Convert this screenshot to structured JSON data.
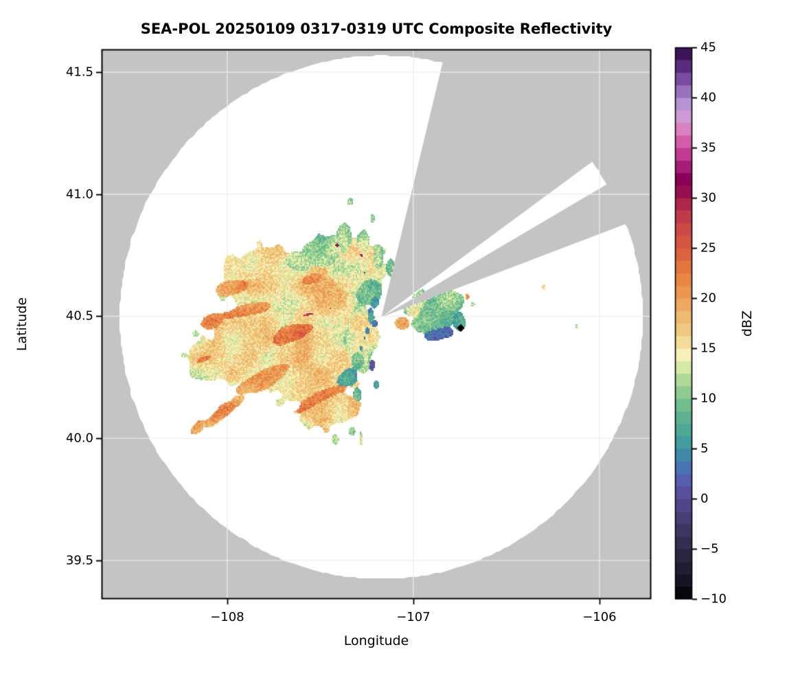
{
  "title": "SEA-POL 20250109 0317-0319 UTC Composite Reflectivity",
  "axes": {
    "xlabel": "Longitude",
    "ylabel": "Latitude",
    "xlim": [
      -108.675,
      -105.723
    ],
    "ylim": [
      39.342,
      41.593
    ],
    "x_ticks": [
      {
        "value": -108,
        "label": "−108"
      },
      {
        "value": -107,
        "label": "−107"
      },
      {
        "value": -106,
        "label": "−106"
      }
    ],
    "y_ticks": [
      {
        "value": 41.5,
        "label": "41.5"
      },
      {
        "value": 41.0,
        "label": "41.0"
      },
      {
        "value": 40.5,
        "label": "40.5"
      },
      {
        "value": 40.0,
        "label": "40.0"
      },
      {
        "value": 39.5,
        "label": "39.5"
      }
    ]
  },
  "colors": {
    "plot_background": "#c4c4c4",
    "coverage_fill": "#ffffff",
    "grid": "#ececec",
    "frame": "#000000",
    "marker": "#000000"
  },
  "radar": {
    "center_lon": -107.172,
    "center_lat": 40.496,
    "range_radius_deg_lat": 1.072,
    "blocked_sectors_az": [
      [
        13.5,
        53.5
      ],
      [
        59.5,
        69.0
      ]
    ]
  },
  "marker": {
    "lon": -106.745,
    "lat": 40.452,
    "shape": "diamond",
    "color": "#000000"
  },
  "colorbar": {
    "label": "dBZ",
    "min": -10,
    "max": 45,
    "band_step": 1.25,
    "ticks": [
      {
        "value": 45,
        "label": "45"
      },
      {
        "value": 40,
        "label": "40"
      },
      {
        "value": 35,
        "label": "35"
      },
      {
        "value": 30,
        "label": "30"
      },
      {
        "value": 25,
        "label": "25"
      },
      {
        "value": 20,
        "label": "20"
      },
      {
        "value": 15,
        "label": "15"
      },
      {
        "value": 10,
        "label": "10"
      },
      {
        "value": 5,
        "label": "5"
      },
      {
        "value": 0,
        "label": "0"
      },
      {
        "value": -5,
        "label": "−5"
      },
      {
        "value": -10,
        "label": "−10"
      }
    ],
    "stops": [
      [
        -10,
        "#000000"
      ],
      [
        -8.5,
        "#131020"
      ],
      [
        -7,
        "#201c31"
      ],
      [
        -5.5,
        "#2c2643"
      ],
      [
        -4,
        "#373054"
      ],
      [
        -2.5,
        "#43396b"
      ],
      [
        -1.2,
        "#4d4180"
      ],
      [
        0,
        "#564a92"
      ],
      [
        1,
        "#5b54a4"
      ],
      [
        2.2,
        "#5462b1"
      ],
      [
        3.2,
        "#4875b4"
      ],
      [
        4.2,
        "#4186ab"
      ],
      [
        5,
        "#3f95a3"
      ],
      [
        6,
        "#44a19b"
      ],
      [
        7.5,
        "#55ad92"
      ],
      [
        9,
        "#6cba8f"
      ],
      [
        10,
        "#7fc48f"
      ],
      [
        11.2,
        "#9cd193"
      ],
      [
        12.5,
        "#c0e09a"
      ],
      [
        13.5,
        "#e3eeab"
      ],
      [
        14.2,
        "#f7f3bd"
      ],
      [
        15,
        "#f5e6a5"
      ],
      [
        16.2,
        "#f2d28b"
      ],
      [
        17.5,
        "#efc176"
      ],
      [
        19,
        "#edaf64"
      ],
      [
        20,
        "#eca05a"
      ],
      [
        21.2,
        "#ea8f4b"
      ],
      [
        22.5,
        "#e77e3e"
      ],
      [
        24,
        "#df683c"
      ],
      [
        25,
        "#d95a3e"
      ],
      [
        26.2,
        "#d25042"
      ],
      [
        27.5,
        "#c84347"
      ],
      [
        28.8,
        "#b93149"
      ],
      [
        30,
        "#a21b4b"
      ],
      [
        31,
        "#8f0853"
      ],
      [
        31.9,
        "#8d0057"
      ],
      [
        32.8,
        "#9d1570"
      ],
      [
        33.8,
        "#b52d87"
      ],
      [
        34.8,
        "#c9459a"
      ],
      [
        35.8,
        "#d562ae"
      ],
      [
        36.8,
        "#da7fc1"
      ],
      [
        37.8,
        "#d495d2"
      ],
      [
        38.8,
        "#c5a0da"
      ],
      [
        39.8,
        "#ab89cc"
      ],
      [
        41,
        "#8d67b3"
      ],
      [
        42.2,
        "#70439a"
      ],
      [
        43.5,
        "#4f2372"
      ],
      [
        44.5,
        "#3a1256"
      ],
      [
        45,
        "#2d0a45"
      ]
    ]
  },
  "chart_data": {
    "type": "heatmap",
    "note": "Radar composite reflectivity field; echo_regions are elliptical gaussian patches [lon, lat, rx_deg, ry_deg, rot_deg, dbz] rendered as a speckled field, clipped to the scan circle minus blocked sectors.",
    "title": "SEA-POL 20250109 0317-0319 UTC Composite Reflectivity",
    "xlabel": "Longitude",
    "ylabel": "Latitude",
    "value_units": "dBZ",
    "value_range": [
      -10,
      45
    ],
    "echo_regions": [
      [
        -107.72,
        40.6,
        0.34,
        0.2,
        -15,
        16
      ],
      [
        -107.5,
        40.52,
        0.3,
        0.24,
        0,
        17
      ],
      [
        -107.55,
        40.3,
        0.33,
        0.2,
        10,
        17
      ],
      [
        -107.88,
        40.42,
        0.28,
        0.2,
        20,
        16
      ],
      [
        -107.32,
        40.68,
        0.2,
        0.15,
        0,
        15
      ],
      [
        -107.45,
        40.13,
        0.17,
        0.11,
        10,
        17
      ],
      [
        -108.07,
        40.33,
        0.16,
        0.1,
        15,
        16
      ],
      [
        -107.3,
        40.42,
        0.12,
        0.2,
        0,
        14
      ],
      [
        -107.48,
        40.76,
        0.14,
        0.08,
        0,
        12
      ],
      [
        -107.62,
        40.72,
        0.1,
        0.06,
        0,
        13
      ],
      [
        -107.25,
        40.61,
        0.1,
        0.09,
        0,
        11
      ],
      [
        -107.37,
        40.81,
        0.045,
        0.09,
        0,
        11
      ],
      [
        -107.27,
        40.79,
        0.04,
        0.08,
        0,
        12
      ],
      [
        -107.19,
        40.74,
        0.035,
        0.07,
        0,
        11
      ],
      [
        -107.12,
        40.7,
        0.03,
        0.05,
        0,
        10
      ],
      [
        -107.3,
        40.33,
        0.06,
        0.07,
        0,
        9
      ],
      [
        -107.36,
        40.25,
        0.09,
        0.05,
        20,
        8
      ],
      [
        -107.85,
        40.53,
        0.26,
        0.05,
        12,
        22
      ],
      [
        -107.62,
        40.44,
        0.28,
        0.06,
        15,
        23
      ],
      [
        -107.75,
        40.26,
        0.26,
        0.055,
        22,
        22
      ],
      [
        -107.48,
        40.17,
        0.18,
        0.05,
        18,
        22
      ],
      [
        -107.95,
        40.62,
        0.13,
        0.04,
        8,
        21
      ],
      [
        -108.1,
        40.33,
        0.11,
        0.035,
        15,
        21
      ],
      [
        -107.55,
        40.65,
        0.1,
        0.035,
        10,
        20
      ],
      [
        -108.08,
        40.48,
        0.09,
        0.045,
        10,
        20
      ],
      [
        -107.55,
        40.51,
        0.13,
        0.022,
        10,
        30
      ],
      [
        -107.45,
        40.53,
        0.05,
        0.015,
        15,
        28
      ],
      [
        -108.02,
        40.11,
        0.19,
        0.028,
        32,
        21
      ],
      [
        -108.16,
        40.045,
        0.05,
        0.025,
        32,
        22
      ],
      [
        -107.23,
        40.5,
        0.025,
        0.05,
        0,
        5
      ],
      [
        -107.21,
        40.56,
        0.03,
        0.04,
        0,
        6
      ],
      [
        -107.25,
        40.44,
        0.03,
        0.03,
        0,
        3
      ],
      [
        -107.28,
        40.37,
        0.025,
        0.04,
        0,
        4
      ],
      [
        -107.22,
        40.3,
        0.02,
        0.03,
        0,
        3
      ],
      [
        -107.2,
        40.22,
        0.025,
        0.025,
        0,
        6
      ],
      [
        -107.3,
        40.18,
        0.03,
        0.03,
        0,
        7
      ],
      [
        -107.21,
        40.47,
        0.02,
        0.02,
        0,
        1
      ],
      [
        -107.26,
        40.41,
        0.015,
        0.02,
        0,
        2
      ],
      [
        -106.9,
        40.5,
        0.15,
        0.1,
        0,
        11
      ],
      [
        -106.82,
        40.56,
        0.09,
        0.06,
        0,
        12
      ],
      [
        -106.96,
        40.56,
        0.05,
        0.05,
        0,
        13
      ],
      [
        -106.87,
        40.43,
        0.1,
        0.035,
        10,
        5
      ],
      [
        -106.76,
        40.48,
        0.04,
        0.04,
        0,
        7
      ],
      [
        -107.06,
        40.47,
        0.05,
        0.028,
        0,
        20
      ],
      [
        -106.99,
        40.52,
        0.05,
        0.04,
        0,
        14
      ],
      [
        -107.34,
        40.97,
        0.018,
        0.015,
        0,
        12
      ],
      [
        -107.22,
        40.9,
        0.015,
        0.02,
        0,
        12
      ],
      [
        -107.1,
        40.64,
        0.02,
        0.02,
        0,
        11
      ],
      [
        -107.41,
        40.79,
        0.012,
        0.01,
        0,
        30
      ],
      [
        -107.28,
        40.75,
        0.012,
        0.01,
        0,
        29
      ],
      [
        -107.26,
        40.68,
        0.01,
        0.01,
        0,
        30
      ],
      [
        -107.42,
        40.0,
        0.02,
        0.025,
        0,
        12
      ],
      [
        -107.33,
        40.03,
        0.018,
        0.02,
        0,
        13
      ],
      [
        -107.28,
        40.0,
        0.012,
        0.035,
        0,
        14
      ],
      [
        -107.47,
        40.06,
        0.03,
        0.02,
        0,
        15
      ],
      [
        -106.71,
        40.58,
        0.012,
        0.012,
        0,
        22
      ],
      [
        -106.68,
        40.55,
        0.012,
        0.012,
        0,
        12
      ],
      [
        -106.3,
        40.62,
        0.012,
        0.012,
        0,
        15
      ],
      [
        -106.12,
        40.46,
        0.012,
        0.012,
        0,
        15
      ],
      [
        -108.17,
        40.43,
        0.018,
        0.014,
        0,
        13
      ],
      [
        -108.23,
        40.34,
        0.02,
        0.012,
        0,
        15
      ]
    ]
  }
}
